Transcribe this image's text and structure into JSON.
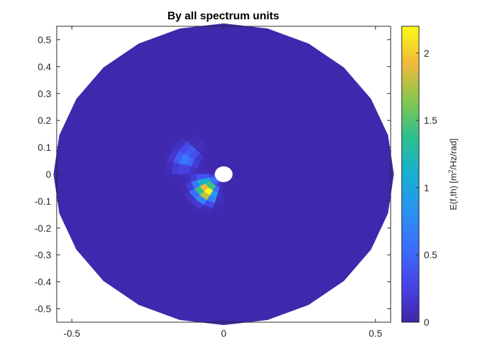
{
  "chart_data": {
    "type": "heatmap",
    "subtype": "polar-directional-spectrum",
    "title": "By all spectrum units",
    "xlim": [
      -0.55,
      0.55
    ],
    "ylim": [
      -0.55,
      0.55
    ],
    "x_ticks": [
      -0.5,
      0,
      0.5
    ],
    "x_tick_labels": [
      "-0.5",
      "0",
      "0.5"
    ],
    "y_ticks": [
      0.5,
      0.4,
      0.3,
      0.2,
      0.1,
      0,
      -0.1,
      -0.2,
      -0.3,
      -0.4,
      -0.5
    ],
    "y_tick_labels": [
      "0.5",
      "0.4",
      "0.3",
      "0.2",
      "0.1",
      "0",
      "-0.1",
      "-0.2",
      "-0.3",
      "-0.4",
      "-0.5"
    ],
    "grid": false,
    "radial_range": [
      0.03,
      0.56
    ],
    "colormap": "parula",
    "colorbar": {
      "label_prefix": "E(f,th) [m",
      "label_sup": "2",
      "label_suffix": "/Hz/rad]",
      "range": [
        0,
        2.2
      ],
      "ticks": [
        0,
        0.5,
        1,
        1.5,
        2
      ],
      "tick_labels": [
        "0",
        "0.5",
        "1",
        "1.5",
        "2"
      ]
    },
    "background_level": 0.02,
    "peaks": [
      {
        "radius": 0.085,
        "direction_deg": 230,
        "value": 2.2
      },
      {
        "radius": 0.07,
        "direction_deg": 205,
        "value": 1.0
      },
      {
        "radius": 0.14,
        "direction_deg": 155,
        "value": 0.65
      }
    ]
  }
}
